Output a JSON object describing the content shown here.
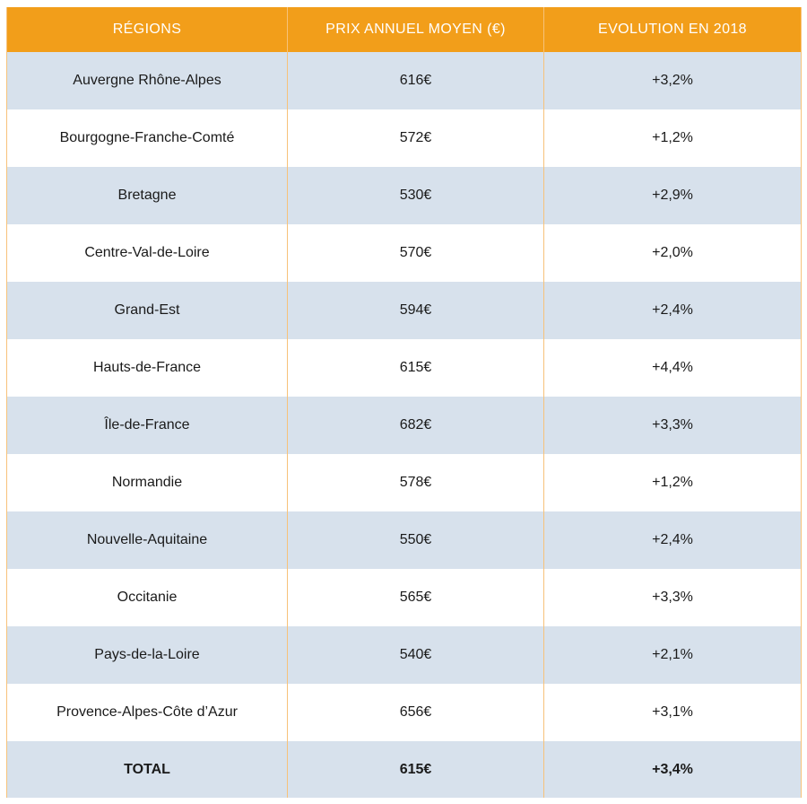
{
  "table": {
    "headers": [
      "RÉGIONS",
      "PRIX ANNUEL MOYEN (€)",
      "EVOLUTION EN 2018"
    ],
    "rows": [
      [
        "Auvergne Rhône-Alpes",
        "616€",
        "+3,2%"
      ],
      [
        "Bourgogne-Franche-Comté",
        "572€",
        "+1,2%"
      ],
      [
        "Bretagne",
        "530€",
        "+2,9%"
      ],
      [
        "Centre-Val-de-Loire",
        "570€",
        "+2,0%"
      ],
      [
        "Grand-Est",
        "594€",
        "+2,4%"
      ],
      [
        "Hauts-de-France",
        "615€",
        "+4,4%"
      ],
      [
        "Île-de-France",
        "682€",
        "+3,3%"
      ],
      [
        "Normandie",
        "578€",
        "+1,2%"
      ],
      [
        "Nouvelle-Aquitaine",
        "550€",
        "+2,4%"
      ],
      [
        "Occitanie",
        "565€",
        "+3,3%"
      ],
      [
        "Pays-de-la-Loire",
        "540€",
        "+2,1%"
      ],
      [
        "Provence-Alpes-Côte d’Azur",
        "656€",
        "+3,1%"
      ]
    ],
    "total": [
      "TOTAL",
      "615€",
      "+3,4%"
    ]
  },
  "colors": {
    "header_bg": "#f29e1a",
    "header_text": "#ffffff",
    "row_stripe": "#d7e1ec",
    "row_plain": "#ffffff",
    "divider": "#f7c27a"
  }
}
